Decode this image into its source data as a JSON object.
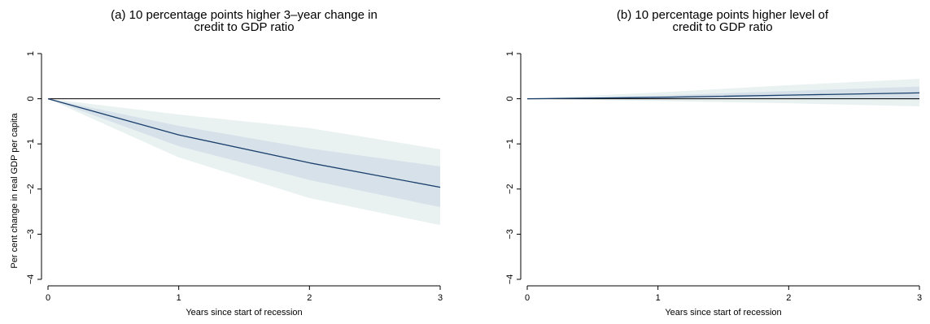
{
  "chart_data": [
    {
      "type": "line",
      "panel_id": "a",
      "title_lines": [
        "(a) 10 percentage points higher 3–year change in",
        "credit to GDP ratio"
      ],
      "xlabel": "Years since start of recession",
      "ylabel": "Per cent change in real GDP per capita",
      "x_ticks": [
        "0",
        "1",
        "2",
        "3"
      ],
      "y_ticks": [
        "1",
        "0",
        "−1",
        "−2",
        "−3",
        "−4"
      ],
      "xlim": [
        0,
        3
      ],
      "ylim": [
        -4,
        1
      ],
      "x": [
        0,
        1,
        2,
        3
      ],
      "series": [
        {
          "role": "estimate",
          "values": [
            0,
            -0.8,
            -1.42,
            -1.96
          ]
        },
        {
          "role": "band_inner",
          "lower": [
            0,
            -1.05,
            -1.8,
            -2.4
          ],
          "upper": [
            0,
            -0.6,
            -1.1,
            -1.5
          ]
        },
        {
          "role": "band_outer",
          "lower": [
            0,
            -1.3,
            -2.2,
            -2.8
          ],
          "upper": [
            0,
            -0.35,
            -0.65,
            -1.12
          ]
        }
      ],
      "reference_line_y": 0,
      "grid": false,
      "colors": {
        "line": "#1a3f6b",
        "inner": "#d6e1ea",
        "outer": "#e9f1f1",
        "zero": "#000000"
      }
    },
    {
      "type": "line",
      "panel_id": "b",
      "title_lines": [
        "(b) 10 percentage points higher level of",
        "credit to GDP ratio"
      ],
      "xlabel": "Years since start of recession",
      "ylabel": "",
      "x_ticks": [
        "0",
        "1",
        "2",
        "3"
      ],
      "y_ticks": [
        "1",
        "0",
        "−1",
        "−2",
        "−3",
        "−4"
      ],
      "xlim": [
        0,
        3
      ],
      "ylim": [
        -4,
        1
      ],
      "x": [
        0,
        1,
        2,
        3
      ],
      "series": [
        {
          "role": "estimate",
          "values": [
            0,
            0.03,
            0.08,
            0.13
          ]
        },
        {
          "role": "band_inner",
          "lower": [
            0,
            0.0,
            0.01,
            -0.02
          ],
          "upper": [
            0,
            0.07,
            0.17,
            0.27
          ]
        },
        {
          "role": "band_outer",
          "lower": [
            0,
            -0.05,
            -0.1,
            -0.17
          ],
          "upper": [
            0,
            0.14,
            0.3,
            0.44
          ]
        }
      ],
      "reference_line_y": 0,
      "grid": false,
      "colors": {
        "line": "#1a3f6b",
        "inner": "#d6e1ea",
        "outer": "#e9f1f1",
        "zero": "#000000"
      }
    }
  ]
}
